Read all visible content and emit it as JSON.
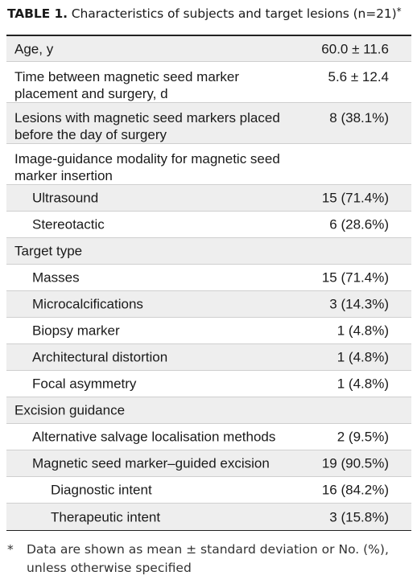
{
  "caption": {
    "label": "TABLE 1.",
    "text": "Characteristics of subjects and target lesions (n=21)",
    "marker": "*"
  },
  "rows": [
    {
      "label": "Age, y",
      "value": "60.0 ± 11.6",
      "level": 0,
      "shade": true
    },
    {
      "label": "Time between magnetic seed marker placement and surgery, d",
      "value": "5.6 ± 12.4",
      "level": 0,
      "shade": false
    },
    {
      "label": "Lesions with magnetic seed markers placed before the day of surgery",
      "value": "8 (38.1%)",
      "level": 0,
      "shade": true
    },
    {
      "label": "Image-guidance modality for magnetic seed marker insertion",
      "value": "",
      "level": 0,
      "shade": false
    },
    {
      "label": "Ultrasound",
      "value": "15 (71.4%)",
      "level": 1,
      "shade": true
    },
    {
      "label": "Stereotactic",
      "value": "6 (28.6%)",
      "level": 1,
      "shade": false
    },
    {
      "label": "Target type",
      "value": "",
      "level": 0,
      "shade": true
    },
    {
      "label": "Masses",
      "value": "15 (71.4%)",
      "level": 1,
      "shade": false
    },
    {
      "label": "Microcalcifications",
      "value": "3 (14.3%)",
      "level": 1,
      "shade": true
    },
    {
      "label": "Biopsy marker",
      "value": "1 (4.8%)",
      "level": 1,
      "shade": false
    },
    {
      "label": "Architectural distortion",
      "value": "1 (4.8%)",
      "level": 1,
      "shade": true
    },
    {
      "label": "Focal asymmetry",
      "value": "1 (4.8%)",
      "level": 1,
      "shade": false
    },
    {
      "label": "Excision guidance",
      "value": "",
      "level": 0,
      "shade": true
    },
    {
      "label": "Alternative salvage localisation methods",
      "value": "2 (9.5%)",
      "level": 1,
      "shade": false
    },
    {
      "label": "Magnetic seed marker–guided excision",
      "value": "19 (90.5%)",
      "level": 1,
      "shade": true
    },
    {
      "label": "Diagnostic intent",
      "value": "16 (84.2%)",
      "level": 2,
      "shade": false
    },
    {
      "label": "Therapeutic intent",
      "value": "3 (15.8%)",
      "level": 2,
      "shade": true
    }
  ],
  "footnote": {
    "marker": "*",
    "text": "Data are shown as mean ± standard deviation or No. (%), unless otherwise specified"
  }
}
